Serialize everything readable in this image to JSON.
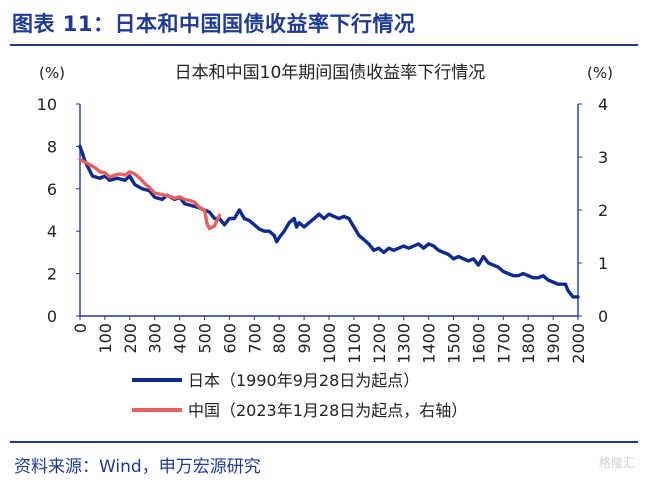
{
  "figure": {
    "title": "图表 11：日本和中国国债收益率下行情况",
    "source": "资料来源：Wind，申万宏源研究",
    "watermark": "格隆汇"
  },
  "colors": {
    "brand": "#1f3a93",
    "japan": "#0d2a8f",
    "china": "#e8605e",
    "axis": "#1f3a93"
  },
  "chart_data": {
    "type": "line",
    "title": "日本和中国10年期间国债收益率下行情况",
    "left_unit": "(%)",
    "right_unit": "(%)",
    "x_ticks": [
      "0",
      "100",
      "200",
      "300",
      "400",
      "500",
      "600",
      "700",
      "800",
      "900",
      "1000",
      "1100",
      "1200",
      "1300",
      "1400",
      "1500",
      "1600",
      "1700",
      "1800",
      "1900",
      "2000"
    ],
    "xlim": [
      0,
      2000
    ],
    "ylim_left": [
      0,
      10
    ],
    "ylim_right": [
      0,
      4
    ],
    "y_ticks_left": [
      "0",
      "2",
      "4",
      "6",
      "8",
      "10"
    ],
    "y_ticks_right": [
      "0",
      "1",
      "2",
      "3",
      "4"
    ],
    "grid": false,
    "legend_position": "bottom",
    "series": [
      {
        "name": "日本（1990年9月28日为起点）",
        "axis": "left",
        "points": [
          [
            0,
            8.0
          ],
          [
            20,
            7.3
          ],
          [
            50,
            6.6
          ],
          [
            80,
            6.5
          ],
          [
            100,
            6.6
          ],
          [
            120,
            6.4
          ],
          [
            150,
            6.5
          ],
          [
            180,
            6.4
          ],
          [
            200,
            6.6
          ],
          [
            220,
            6.2
          ],
          [
            250,
            6.0
          ],
          [
            280,
            5.9
          ],
          [
            300,
            5.6
          ],
          [
            330,
            5.5
          ],
          [
            350,
            5.7
          ],
          [
            380,
            5.5
          ],
          [
            400,
            5.6
          ],
          [
            420,
            5.3
          ],
          [
            450,
            5.2
          ],
          [
            480,
            5.1
          ],
          [
            500,
            5.0
          ],
          [
            520,
            4.9
          ],
          [
            540,
            4.6
          ],
          [
            560,
            4.6
          ],
          [
            580,
            4.3
          ],
          [
            600,
            4.6
          ],
          [
            620,
            4.6
          ],
          [
            640,
            5.0
          ],
          [
            660,
            4.6
          ],
          [
            680,
            4.5
          ],
          [
            700,
            4.3
          ],
          [
            720,
            4.1
          ],
          [
            740,
            4.0
          ],
          [
            760,
            4.0
          ],
          [
            780,
            3.8
          ],
          [
            790,
            3.5
          ],
          [
            800,
            3.7
          ],
          [
            820,
            4.0
          ],
          [
            840,
            4.4
          ],
          [
            860,
            4.6
          ],
          [
            870,
            4.2
          ],
          [
            880,
            4.4
          ],
          [
            900,
            4.2
          ],
          [
            920,
            4.4
          ],
          [
            940,
            4.6
          ],
          [
            960,
            4.8
          ],
          [
            980,
            4.6
          ],
          [
            1000,
            4.8
          ],
          [
            1020,
            4.7
          ],
          [
            1040,
            4.6
          ],
          [
            1060,
            4.7
          ],
          [
            1080,
            4.6
          ],
          [
            1100,
            4.2
          ],
          [
            1120,
            3.8
          ],
          [
            1140,
            3.6
          ],
          [
            1160,
            3.4
          ],
          [
            1180,
            3.1
          ],
          [
            1200,
            3.2
          ],
          [
            1220,
            3.0
          ],
          [
            1240,
            3.2
          ],
          [
            1260,
            3.1
          ],
          [
            1280,
            3.2
          ],
          [
            1300,
            3.3
          ],
          [
            1320,
            3.2
          ],
          [
            1340,
            3.3
          ],
          [
            1360,
            3.4
          ],
          [
            1380,
            3.2
          ],
          [
            1400,
            3.4
          ],
          [
            1420,
            3.3
          ],
          [
            1440,
            3.1
          ],
          [
            1460,
            3.0
          ],
          [
            1480,
            2.9
          ],
          [
            1500,
            2.7
          ],
          [
            1520,
            2.8
          ],
          [
            1540,
            2.7
          ],
          [
            1560,
            2.6
          ],
          [
            1580,
            2.7
          ],
          [
            1600,
            2.4
          ],
          [
            1620,
            2.8
          ],
          [
            1640,
            2.5
          ],
          [
            1660,
            2.4
          ],
          [
            1680,
            2.3
          ],
          [
            1700,
            2.1
          ],
          [
            1720,
            2.0
          ],
          [
            1740,
            1.9
          ],
          [
            1760,
            1.9
          ],
          [
            1780,
            2.0
          ],
          [
            1800,
            1.9
          ],
          [
            1820,
            1.8
          ],
          [
            1840,
            1.8
          ],
          [
            1860,
            1.9
          ],
          [
            1880,
            1.7
          ],
          [
            1900,
            1.6
          ],
          [
            1920,
            1.5
          ],
          [
            1940,
            1.5
          ],
          [
            1950,
            1.5
          ],
          [
            1960,
            1.2
          ],
          [
            1980,
            0.9
          ],
          [
            2000,
            0.9
          ]
        ]
      },
      {
        "name": "中国（2023年1月28日为起点，右轴）",
        "axis": "right",
        "points": [
          [
            0,
            2.95
          ],
          [
            20,
            2.9
          ],
          [
            40,
            2.85
          ],
          [
            60,
            2.8
          ],
          [
            80,
            2.72
          ],
          [
            100,
            2.7
          ],
          [
            120,
            2.62
          ],
          [
            140,
            2.66
          ],
          [
            160,
            2.68
          ],
          [
            180,
            2.66
          ],
          [
            200,
            2.72
          ],
          [
            220,
            2.68
          ],
          [
            240,
            2.6
          ],
          [
            260,
            2.5
          ],
          [
            280,
            2.42
          ],
          [
            300,
            2.32
          ],
          [
            320,
            2.3
          ],
          [
            340,
            2.28
          ],
          [
            360,
            2.26
          ],
          [
            380,
            2.22
          ],
          [
            400,
            2.25
          ],
          [
            420,
            2.2
          ],
          [
            440,
            2.18
          ],
          [
            460,
            2.15
          ],
          [
            480,
            2.05
          ],
          [
            500,
            2.0
          ],
          [
            510,
            1.75
          ],
          [
            520,
            1.65
          ],
          [
            540,
            1.7
          ],
          [
            560,
            1.9
          ]
        ]
      }
    ]
  }
}
